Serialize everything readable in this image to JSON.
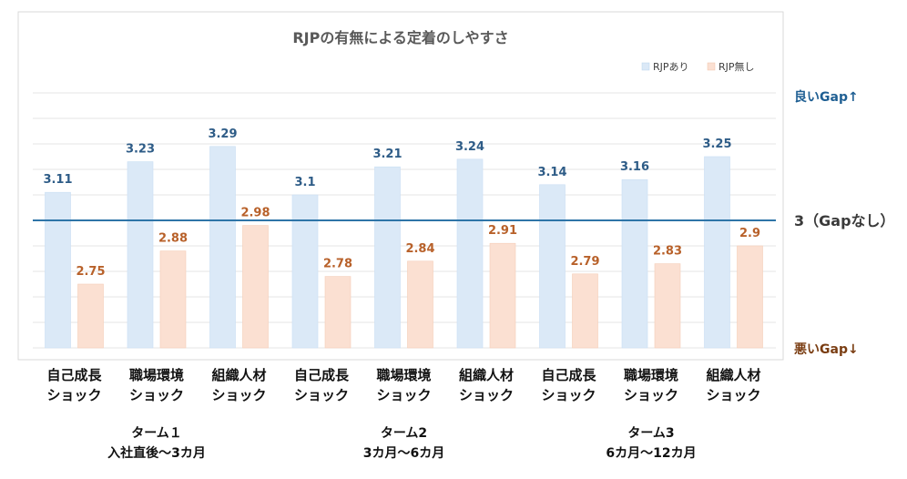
{
  "chart_data": {
    "type": "bar",
    "title": "RJPの有無による定着のしやすさ",
    "categories": [
      [
        "自己成長",
        "ショック"
      ],
      [
        "職場環境",
        "ショック"
      ],
      [
        "組織人材",
        "ショック"
      ],
      [
        "自己成長",
        "ショック"
      ],
      [
        "職場環境",
        "ショック"
      ],
      [
        "組織人材",
        "ショック"
      ],
      [
        "自己成長",
        "ショック"
      ],
      [
        "職場環境",
        "ショック"
      ],
      [
        "組織人材",
        "ショック"
      ]
    ],
    "groups": [
      {
        "name": "ターム１",
        "sub": "入社直後～3カ月"
      },
      {
        "name": "ターム2",
        "sub": "3カ月～6カ月"
      },
      {
        "name": "ターム3",
        "sub": "6カ月～12カ月"
      }
    ],
    "series": [
      {
        "name": "RJPあり",
        "color": "#dbe9f7",
        "values": [
          3.11,
          3.23,
          3.29,
          3.1,
          3.21,
          3.24,
          3.14,
          3.16,
          3.25
        ]
      },
      {
        "name": "RJP無し",
        "color": "#fbe0d2",
        "values": [
          2.75,
          2.88,
          2.98,
          2.78,
          2.84,
          2.91,
          2.79,
          2.83,
          2.9
        ]
      }
    ],
    "ylim": [
      2.5,
      3.5
    ],
    "reference_line": {
      "value": 3,
      "color": "#2e75a8"
    },
    "legend_position": "top-right",
    "grid": true
  },
  "side_labels": {
    "good": "良いGap↑",
    "neutral": "3（Gapなし）",
    "bad": "悪いGap↓"
  }
}
